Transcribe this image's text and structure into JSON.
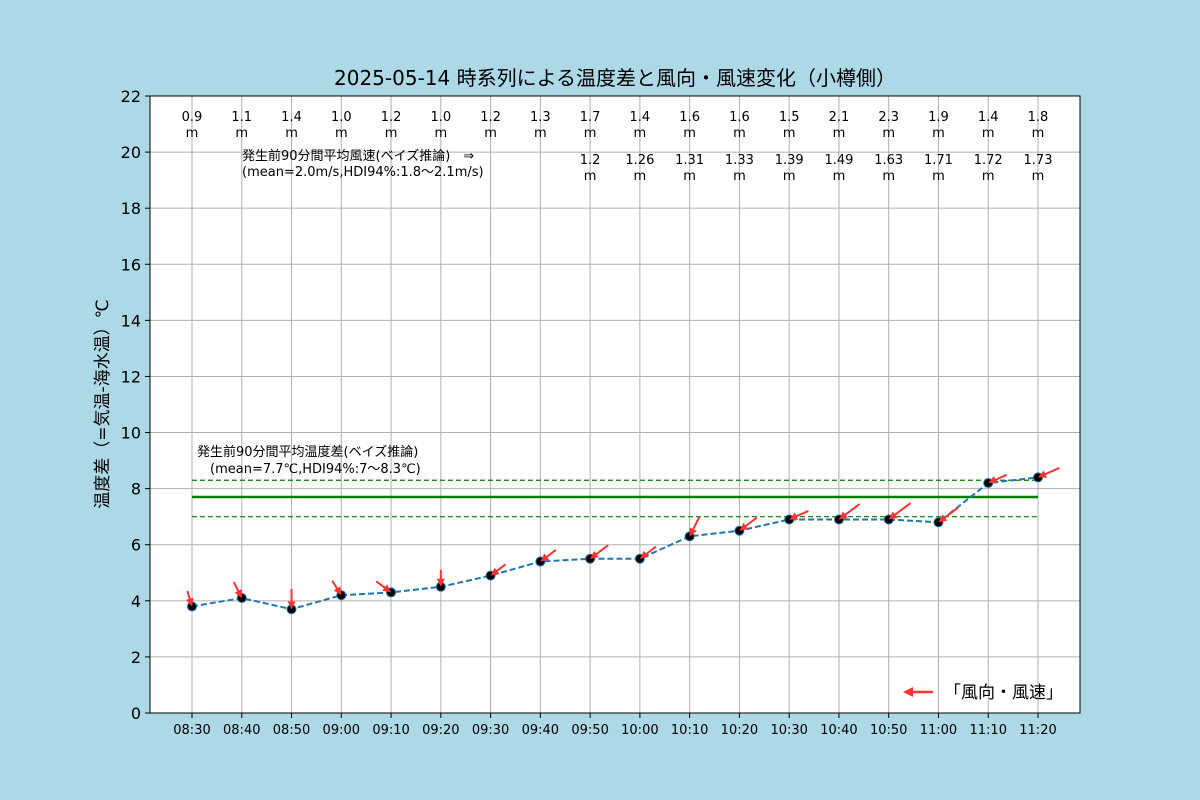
{
  "chart_data": {
    "type": "line",
    "title": "2025-05-14 時系列による温度差と風向・風速変化（小樽側）",
    "ylabel": "温度差（=気温-海水温）℃",
    "xlabel": "",
    "ylim": [
      0,
      22
    ],
    "yticks": [
      "0",
      "2",
      "4",
      "6",
      "8",
      "10",
      "12",
      "14",
      "16",
      "18",
      "20",
      "22"
    ],
    "grid": true,
    "categories": [
      "08:30",
      "08:40",
      "08:50",
      "09:00",
      "09:10",
      "09:20",
      "09:30",
      "09:40",
      "09:50",
      "10:00",
      "10:10",
      "10:20",
      "10:30",
      "10:40",
      "10:50",
      "11:00",
      "11:10",
      "11:20"
    ],
    "series": [
      {
        "values": [
          3.8,
          4.1,
          3.7,
          4.2,
          4.3,
          4.5,
          4.9,
          5.4,
          5.5,
          5.5,
          6.3,
          6.5,
          6.9,
          6.9,
          6.9,
          6.8,
          8.2,
          8.4
        ],
        "color": "#1f77b4"
      }
    ],
    "wind_speed_labels": [
      "0.9",
      "1.1",
      "1.4",
      "1.0",
      "1.2",
      "1.0",
      "1.2",
      "1.3",
      "1.7",
      "1.4",
      "1.6",
      "1.6",
      "1.5",
      "2.1",
      "2.3",
      "1.9",
      "1.4",
      "1.8"
    ],
    "rolling_wind_labels": [
      "",
      "",
      "",
      "",
      "",
      "",
      "",
      "",
      "1.2",
      "1.26",
      "1.31",
      "1.33",
      "1.39",
      "1.49",
      "1.63",
      "1.71",
      "1.72",
      "1.73"
    ],
    "wind_unit": "m",
    "wind_arrow_colors": "#ff3333",
    "wind_annotation": "発生前90分間平均風速(ベイズ推論)　⇒\n(mean=2.0m/s,HDI94%:1.8〜2.1m/s)",
    "temp_annotation": "発生前90分間平均温度差(ベイズ推論)\n　(mean=7.7℃,HDI94%:7〜8.3℃)",
    "mean_temp": 7.7,
    "hdi_temp": [
      7.0,
      8.3
    ],
    "mean_color": "#008000",
    "legend": {
      "label": "「風向・風速」",
      "position": "bottom-right"
    },
    "background_color": "#add8e6"
  }
}
